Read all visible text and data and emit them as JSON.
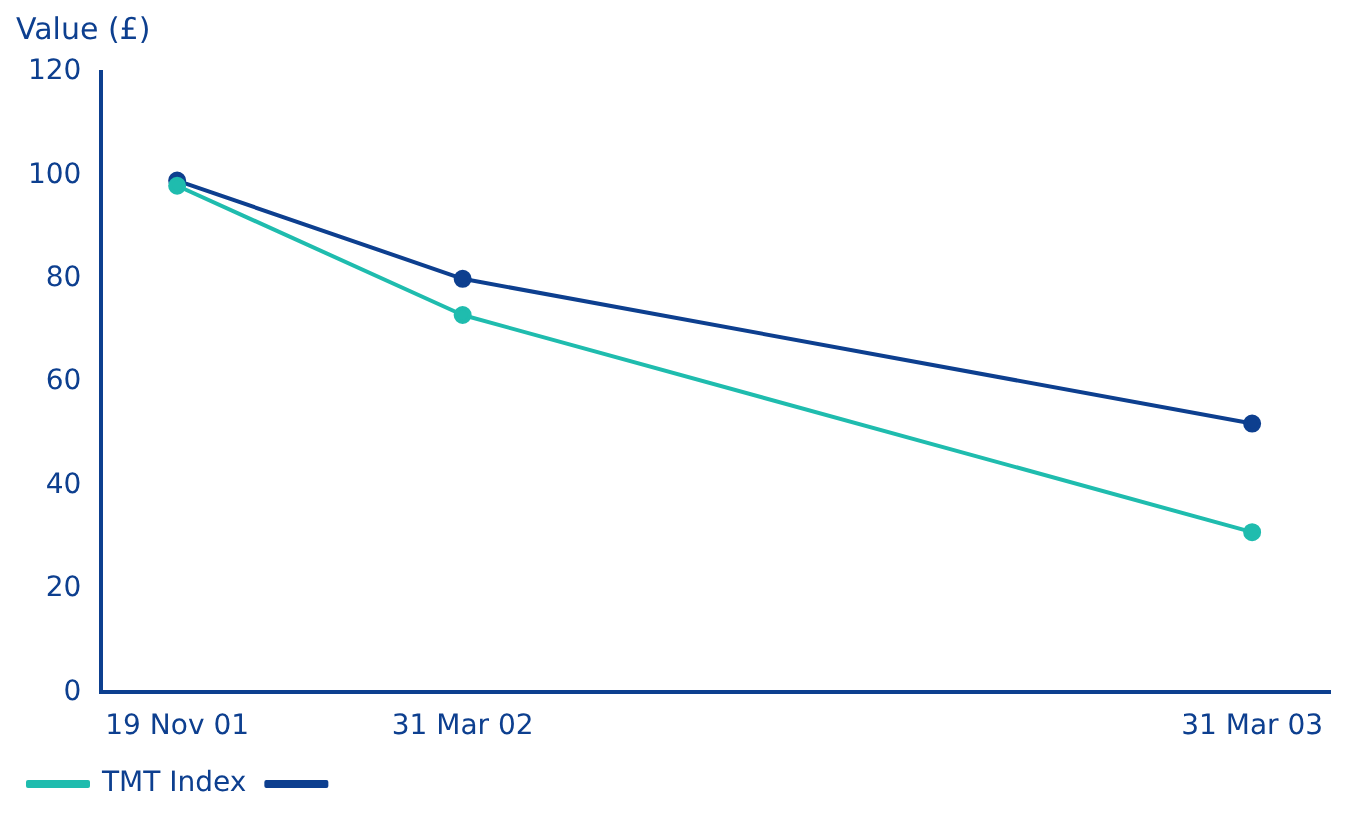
{
  "chart_data": {
    "type": "line",
    "ylabel": "Value (£)",
    "x": [
      "2001-11-19",
      "2002-03-31",
      "2003-03-31"
    ],
    "xlim": [
      "2001-10-15",
      "2003-05-06"
    ],
    "xticks": [
      {
        "value": "2001-11-19",
        "label": "19 Nov 01"
      },
      {
        "value": "2002-03-31",
        "label": "31 Mar 02"
      },
      {
        "value": "2003-03-31",
        "label": "31 Mar 03"
      }
    ],
    "ylim": [
      0,
      120
    ],
    "yticks": [
      0,
      20,
      40,
      60,
      80,
      100,
      120
    ],
    "series": [
      {
        "color": "#0d3f8f",
        "values": [
          99,
          80,
          52
        ]
      },
      {
        "name": "TMT Index",
        "color": "#1fbcae",
        "values": [
          98,
          73,
          31
        ]
      }
    ],
    "grid": false,
    "legend": "bottom",
    "marker": "circle",
    "line_style": "solid"
  }
}
